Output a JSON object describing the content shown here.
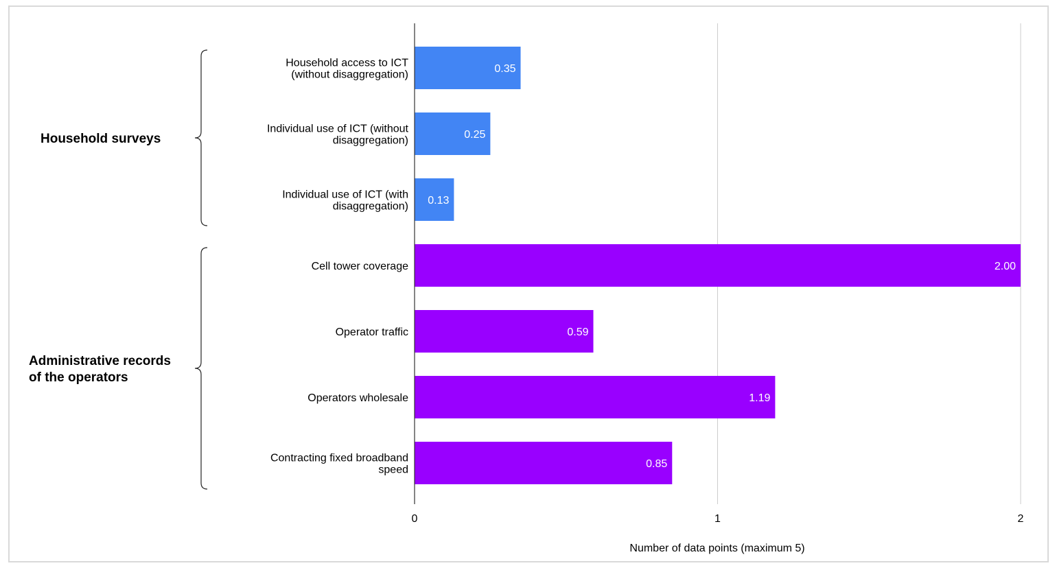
{
  "chart_data": {
    "type": "bar",
    "orientation": "horizontal",
    "title": "",
    "xlabel": "Number of data points (maximum 5)",
    "ylabel": "",
    "xlim": [
      0,
      2
    ],
    "xticks": [
      "0",
      "1",
      "2"
    ],
    "grid": true,
    "groups": [
      {
        "name_lines": [
          "Household surveys"
        ],
        "color": "#4285f4",
        "bars": [
          {
            "label_lines": [
              "Household access to ICT",
              "(without disaggregation)"
            ],
            "value": 0.35,
            "value_label": "0.35"
          },
          {
            "label_lines": [
              "Individual use of ICT (without",
              "disaggregation)"
            ],
            "value": 0.25,
            "value_label": "0.25"
          },
          {
            "label_lines": [
              "Individual use of ICT (with",
              "disaggregation)"
            ],
            "value": 0.13,
            "value_label": "0.13"
          }
        ]
      },
      {
        "name_lines": [
          "Administrative records",
          "of the operators"
        ],
        "color": "#9900ff",
        "bars": [
          {
            "label_lines": [
              "Cell tower coverage"
            ],
            "value": 2.0,
            "value_label": "2.00"
          },
          {
            "label_lines": [
              "Operator traffic"
            ],
            "value": 0.59,
            "value_label": "0.59"
          },
          {
            "label_lines": [
              "Operators wholesale"
            ],
            "value": 1.19,
            "value_label": "1.19"
          },
          {
            "label_lines": [
              "Contracting fixed broadband",
              "speed"
            ],
            "value": 0.85,
            "value_label": "0.85"
          }
        ]
      }
    ]
  }
}
